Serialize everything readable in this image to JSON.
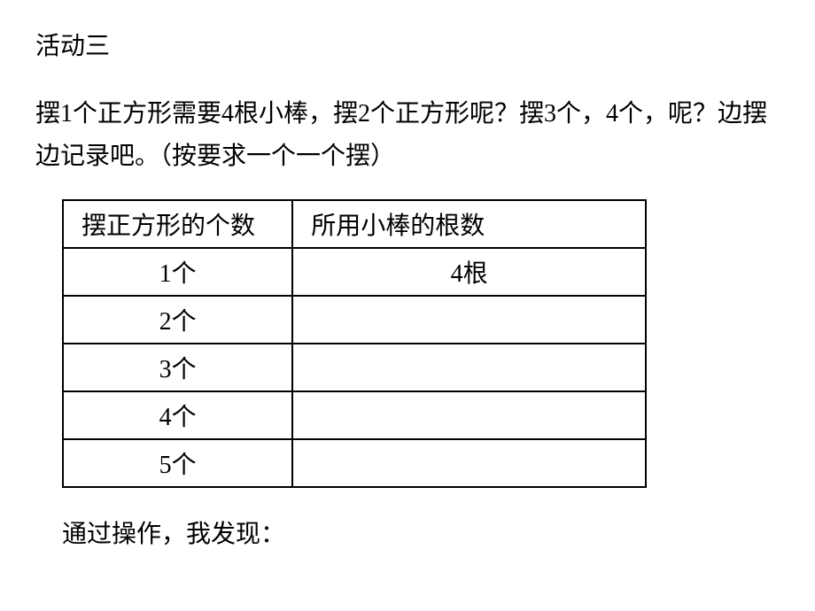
{
  "title": "活动三",
  "question": "摆1个正方形需要4根小棒，摆2个正方形呢？摆3个，4个，呢？边摆边记录吧。（按要求一个一个摆）",
  "table": {
    "columns": [
      "摆正方形的个数",
      "所用小棒的根数"
    ],
    "rows": [
      [
        "1个",
        "4根"
      ],
      [
        "2个",
        ""
      ],
      [
        "3个",
        ""
      ],
      [
        "4个",
        ""
      ],
      [
        "5个",
        ""
      ]
    ],
    "border_color": "#000000",
    "col1_width": 260,
    "col2_width": 400,
    "font_size": 28
  },
  "footer": "通过操作，我发现：",
  "colors": {
    "text": "#000000",
    "background": "#ffffff"
  },
  "typography": {
    "font_family": "SimSun",
    "title_size": 28,
    "body_size": 28
  }
}
